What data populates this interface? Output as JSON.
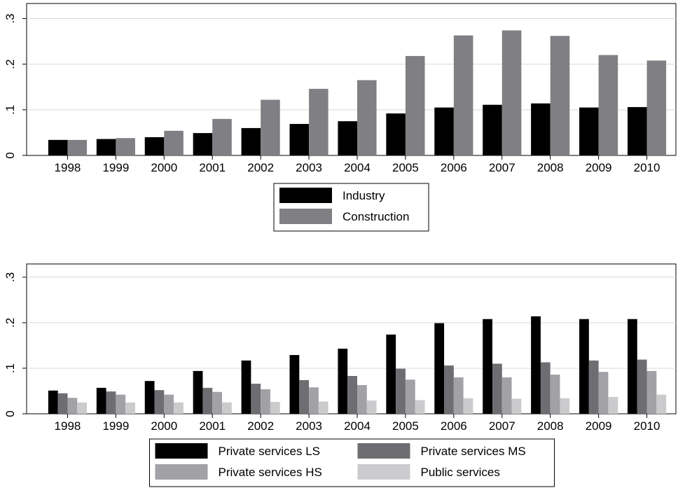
{
  "chart_data": [
    {
      "type": "bar",
      "categories": [
        "1998",
        "1999",
        "2000",
        "2001",
        "2002",
        "2003",
        "2004",
        "2005",
        "2006",
        "2007",
        "2008",
        "2009",
        "2010"
      ],
      "series": [
        {
          "name": "Industry",
          "color": "#000000",
          "values": [
            0.034,
            0.036,
            0.04,
            0.049,
            0.06,
            0.069,
            0.075,
            0.092,
            0.105,
            0.111,
            0.114,
            0.105,
            0.106
          ]
        },
        {
          "name": "Construction",
          "color": "#808084",
          "values": [
            0.034,
            0.038,
            0.054,
            0.08,
            0.122,
            0.146,
            0.165,
            0.218,
            0.263,
            0.274,
            0.262,
            0.22,
            0.208
          ]
        }
      ],
      "ylim": [
        0,
        0.333
      ],
      "yticks": [
        {
          "value": 0,
          "label": "0"
        },
        {
          "value": 0.1,
          "label": ".1"
        },
        {
          "value": 0.2,
          "label": ".2"
        },
        {
          "value": 0.3,
          "label": ".3"
        }
      ],
      "grid": true,
      "legend_columns": 1
    },
    {
      "type": "bar",
      "categories": [
        "1998",
        "1999",
        "2000",
        "2001",
        "2002",
        "2003",
        "2004",
        "2005",
        "2006",
        "2007",
        "2008",
        "2009",
        "2010"
      ],
      "series": [
        {
          "name": "Private services LS",
          "color": "#000000",
          "values": [
            0.051,
            0.057,
            0.072,
            0.094,
            0.117,
            0.129,
            0.143,
            0.174,
            0.199,
            0.208,
            0.214,
            0.208,
            0.208
          ]
        },
        {
          "name": "Private services MS",
          "color": "#6e6e72",
          "values": [
            0.045,
            0.049,
            0.052,
            0.057,
            0.066,
            0.074,
            0.083,
            0.099,
            0.106,
            0.11,
            0.113,
            0.117,
            0.119
          ]
        },
        {
          "name": "Private services HS",
          "color": "#a2a2a6",
          "values": [
            0.035,
            0.042,
            0.042,
            0.048,
            0.054,
            0.058,
            0.063,
            0.075,
            0.08,
            0.08,
            0.086,
            0.092,
            0.094
          ]
        },
        {
          "name": "Public services",
          "color": "#cbcbcd",
          "values": [
            0.025,
            0.025,
            0.025,
            0.025,
            0.026,
            0.027,
            0.029,
            0.03,
            0.034,
            0.033,
            0.034,
            0.037,
            0.042
          ]
        }
      ],
      "ylim": [
        0,
        0.329
      ],
      "yticks": [
        {
          "value": 0,
          "label": "0"
        },
        {
          "value": 0.1,
          "label": ".1"
        },
        {
          "value": 0.2,
          "label": ".2"
        },
        {
          "value": 0.3,
          "label": ".3"
        }
      ],
      "grid": true,
      "legend_columns": 2
    }
  ]
}
